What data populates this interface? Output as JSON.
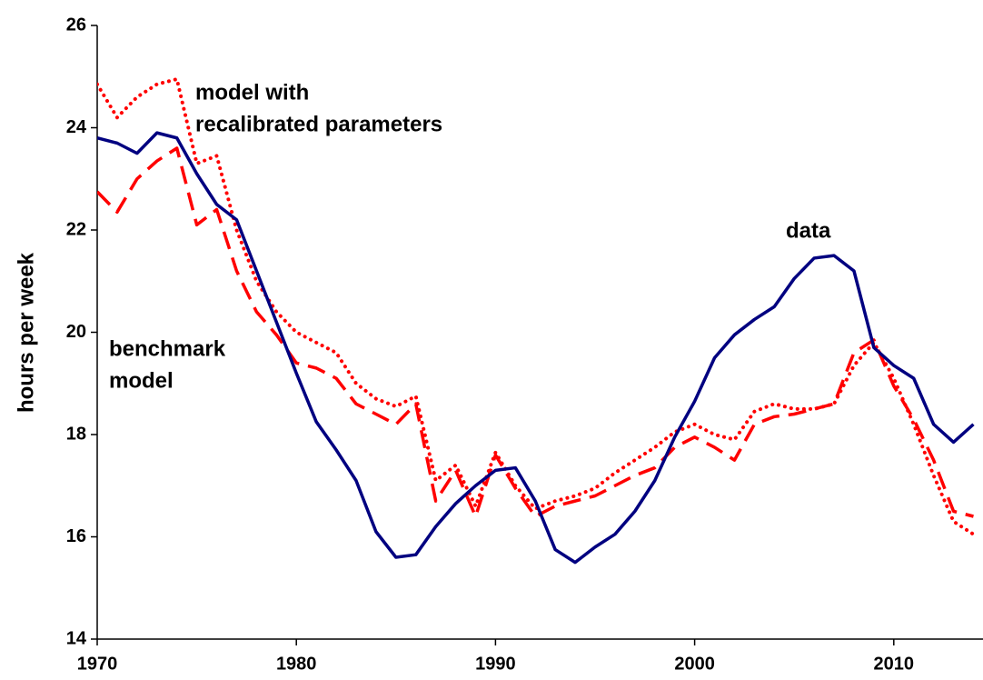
{
  "chart_data": {
    "type": "line",
    "y_label": "hours per week",
    "x": [
      1970,
      1971,
      1972,
      1973,
      1974,
      1975,
      1976,
      1977,
      1978,
      1979,
      1980,
      1981,
      1982,
      1983,
      1984,
      1985,
      1986,
      1987,
      1988,
      1989,
      1990,
      1991,
      1992,
      1993,
      1994,
      1995,
      1996,
      1997,
      1998,
      1999,
      2000,
      2001,
      2002,
      2003,
      2004,
      2005,
      2006,
      2007,
      2008,
      2009,
      2010,
      2011,
      2012,
      2013,
      2014
    ],
    "series": [
      {
        "color": "#000080",
        "style": "solid",
        "values": [
          23.8,
          23.7,
          23.5,
          23.9,
          23.8,
          23.1,
          22.5,
          22.2,
          21.2,
          20.2,
          19.2,
          18.25,
          17.7,
          17.1,
          16.1,
          15.6,
          15.65,
          16.2,
          16.65,
          17.0,
          17.3,
          17.35,
          16.7,
          15.75,
          15.5,
          15.8,
          16.05,
          16.5,
          17.1,
          17.95,
          18.65,
          19.5,
          19.95,
          20.25,
          20.5,
          21.05,
          21.45,
          21.5,
          21.2,
          19.7,
          19.35,
          19.1,
          18.2,
          17.85,
          18.2
        ]
      },
      {
        "color": "#ff0000",
        "style": "dotted",
        "values": [
          24.85,
          24.2,
          24.6,
          24.85,
          24.95,
          23.3,
          23.45,
          22.0,
          21.0,
          20.4,
          20.0,
          19.8,
          19.6,
          19.0,
          18.7,
          18.55,
          18.75,
          17.1,
          17.4,
          16.6,
          17.65,
          17.0,
          16.55,
          16.7,
          16.8,
          16.95,
          17.25,
          17.5,
          17.75,
          18.05,
          18.2,
          18.0,
          17.9,
          18.45,
          18.6,
          18.5,
          18.5,
          18.6,
          19.35,
          19.8,
          19.1,
          18.2,
          17.2,
          16.3,
          16.05
        ]
      },
      {
        "color": "#ff0000",
        "style": "dashed",
        "values": [
          22.75,
          22.35,
          23.0,
          23.35,
          23.6,
          22.1,
          22.4,
          21.2,
          20.4,
          19.95,
          19.4,
          19.3,
          19.1,
          18.6,
          18.4,
          18.2,
          18.6,
          16.7,
          17.3,
          16.4,
          17.6,
          16.95,
          16.4,
          16.6,
          16.7,
          16.8,
          17.0,
          17.2,
          17.35,
          17.75,
          17.95,
          17.75,
          17.5,
          18.2,
          18.35,
          18.4,
          18.5,
          18.6,
          19.6,
          19.85,
          18.95,
          18.3,
          17.5,
          16.5,
          16.4
        ]
      }
    ],
    "annotations": [
      {
        "lines": [
          "model with",
          "recalibrated parameters"
        ]
      },
      {
        "lines": [
          "benchmark",
          "model"
        ]
      },
      {
        "lines": [
          "data"
        ]
      }
    ],
    "xlim": [
      1970,
      2014.5
    ],
    "xticks": [
      1970,
      1980,
      1990,
      2000,
      2010
    ],
    "ylim": [
      14,
      26
    ],
    "yticks": [
      14,
      16,
      18,
      20,
      22,
      24,
      26
    ],
    "grid": false
  }
}
